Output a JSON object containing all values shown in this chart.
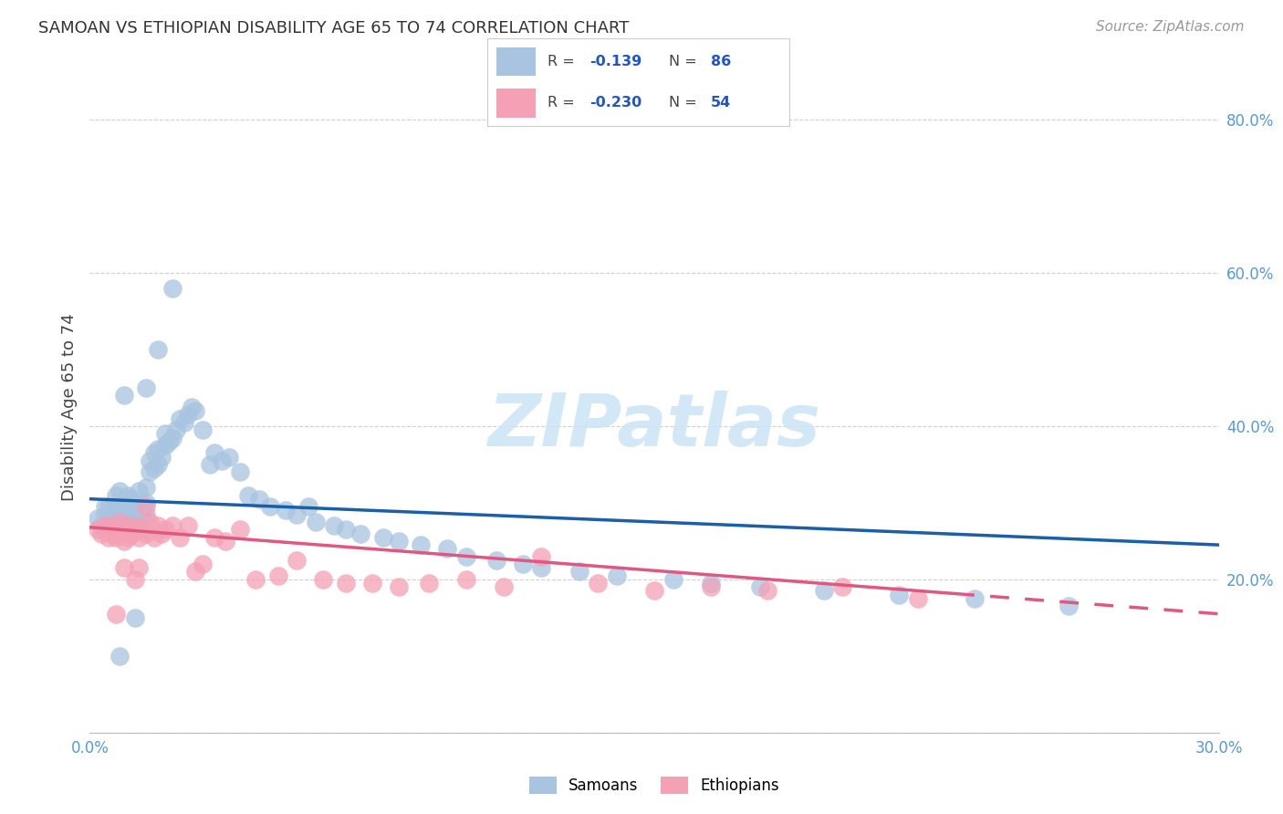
{
  "title": "SAMOAN VS ETHIOPIAN DISABILITY AGE 65 TO 74 CORRELATION CHART",
  "source": "Source: ZipAtlas.com",
  "ylabel": "Disability Age 65 to 74",
  "xlim": [
    0.0,
    0.3
  ],
  "ylim": [
    0.0,
    0.85
  ],
  "x_ticks": [
    0.0,
    0.05,
    0.1,
    0.15,
    0.2,
    0.25,
    0.3
  ],
  "y_ticks": [
    0.0,
    0.2,
    0.4,
    0.6,
    0.8
  ],
  "samoan_color": "#a8c4e0",
  "ethiopian_color": "#f4a0b5",
  "samoan_line_color": "#1a5fa8",
  "ethiopian_line_color": "#e05880",
  "background_color": "#ffffff",
  "grid_color": "#d0d0d0",
  "samoan_x": [
    0.002,
    0.003,
    0.004,
    0.004,
    0.005,
    0.005,
    0.006,
    0.006,
    0.007,
    0.007,
    0.007,
    0.008,
    0.008,
    0.008,
    0.009,
    0.009,
    0.01,
    0.01,
    0.01,
    0.011,
    0.011,
    0.012,
    0.012,
    0.013,
    0.013,
    0.014,
    0.014,
    0.015,
    0.015,
    0.015,
    0.016,
    0.016,
    0.017,
    0.017,
    0.018,
    0.018,
    0.019,
    0.02,
    0.02,
    0.021,
    0.022,
    0.023,
    0.024,
    0.025,
    0.026,
    0.027,
    0.028,
    0.03,
    0.032,
    0.033,
    0.035,
    0.037,
    0.04,
    0.042,
    0.045,
    0.048,
    0.052,
    0.055,
    0.058,
    0.06,
    0.065,
    0.068,
    0.072,
    0.078,
    0.082,
    0.088,
    0.095,
    0.1,
    0.108,
    0.115,
    0.12,
    0.13,
    0.14,
    0.155,
    0.165,
    0.178,
    0.195,
    0.215,
    0.235,
    0.26,
    0.018,
    0.022,
    0.015,
    0.008,
    0.012,
    0.009
  ],
  "samoan_y": [
    0.28,
    0.27,
    0.285,
    0.295,
    0.275,
    0.295,
    0.27,
    0.29,
    0.28,
    0.295,
    0.31,
    0.285,
    0.3,
    0.315,
    0.275,
    0.295,
    0.28,
    0.295,
    0.31,
    0.285,
    0.305,
    0.275,
    0.3,
    0.295,
    0.315,
    0.28,
    0.295,
    0.285,
    0.3,
    0.32,
    0.34,
    0.355,
    0.345,
    0.365,
    0.35,
    0.37,
    0.36,
    0.375,
    0.39,
    0.38,
    0.385,
    0.395,
    0.41,
    0.405,
    0.415,
    0.425,
    0.42,
    0.395,
    0.35,
    0.365,
    0.355,
    0.36,
    0.34,
    0.31,
    0.305,
    0.295,
    0.29,
    0.285,
    0.295,
    0.275,
    0.27,
    0.265,
    0.26,
    0.255,
    0.25,
    0.245,
    0.24,
    0.23,
    0.225,
    0.22,
    0.215,
    0.21,
    0.205,
    0.2,
    0.195,
    0.19,
    0.185,
    0.18,
    0.175,
    0.165,
    0.5,
    0.58,
    0.45,
    0.1,
    0.15,
    0.44
  ],
  "ethiopian_x": [
    0.002,
    0.003,
    0.004,
    0.005,
    0.005,
    0.006,
    0.007,
    0.007,
    0.008,
    0.008,
    0.009,
    0.009,
    0.01,
    0.01,
    0.011,
    0.012,
    0.013,
    0.014,
    0.015,
    0.016,
    0.017,
    0.018,
    0.019,
    0.02,
    0.022,
    0.024,
    0.026,
    0.028,
    0.03,
    0.033,
    0.036,
    0.04,
    0.044,
    0.05,
    0.055,
    0.062,
    0.068,
    0.075,
    0.082,
    0.09,
    0.1,
    0.11,
    0.12,
    0.135,
    0.15,
    0.165,
    0.18,
    0.2,
    0.22,
    0.013,
    0.015,
    0.009,
    0.012,
    0.007
  ],
  "ethiopian_y": [
    0.265,
    0.26,
    0.27,
    0.255,
    0.27,
    0.26,
    0.265,
    0.255,
    0.26,
    0.275,
    0.265,
    0.25,
    0.27,
    0.255,
    0.26,
    0.27,
    0.255,
    0.265,
    0.26,
    0.275,
    0.255,
    0.27,
    0.26,
    0.265,
    0.27,
    0.255,
    0.27,
    0.21,
    0.22,
    0.255,
    0.25,
    0.265,
    0.2,
    0.205,
    0.225,
    0.2,
    0.195,
    0.195,
    0.19,
    0.195,
    0.2,
    0.19,
    0.23,
    0.195,
    0.185,
    0.19,
    0.185,
    0.19,
    0.175,
    0.215,
    0.295,
    0.215,
    0.2,
    0.155
  ]
}
